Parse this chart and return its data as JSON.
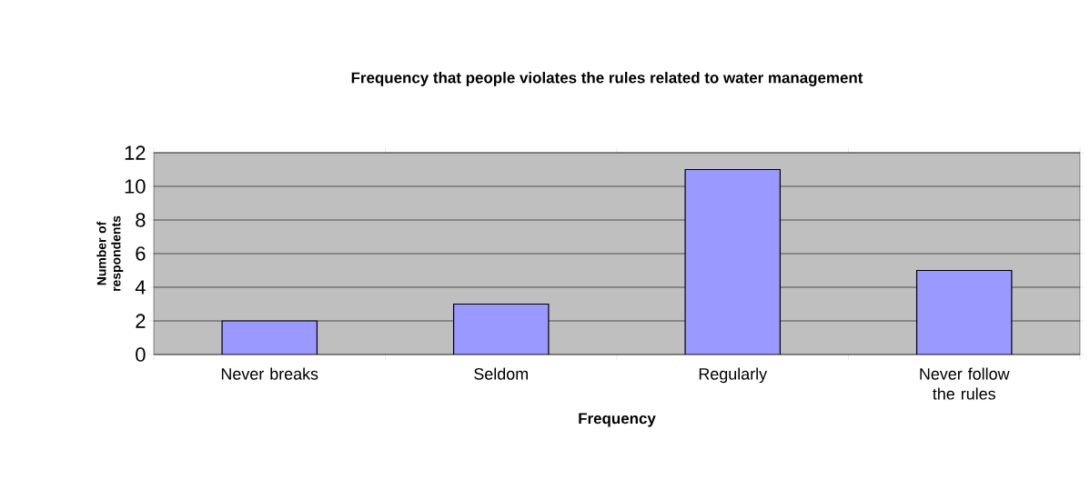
{
  "chart_data": {
    "type": "bar",
    "title": "Frequency that people violates the rules related to water management",
    "xlabel": "Frequency",
    "ylabel": "Number of respondents",
    "categories": [
      "Never breaks",
      "Seldom",
      "Regularly",
      "Never follow the rules"
    ],
    "values": [
      2,
      3,
      11,
      5
    ],
    "color": "#9999ff",
    "ylim": [
      0,
      12
    ],
    "yticks": [
      0,
      2,
      4,
      6,
      8,
      10,
      12
    ],
    "grid": "y"
  }
}
